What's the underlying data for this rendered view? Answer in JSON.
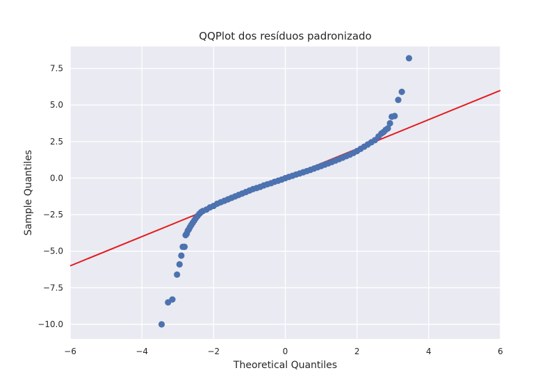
{
  "chart_data": {
    "type": "scatter",
    "title": "QQPlot dos resíduos padronizado",
    "xlabel": "Theoretical Quantiles",
    "ylabel": "Sample Quantiles",
    "xlim": [
      -6,
      6
    ],
    "ylim": [
      -11,
      9
    ],
    "xticks": [
      -6,
      -4,
      -2,
      0,
      2,
      4,
      6
    ],
    "xtick_labels": [
      "−6",
      "−4",
      "−2",
      "0",
      "2",
      "4",
      "6"
    ],
    "yticks": [
      -10,
      -7.5,
      -5,
      -2.5,
      0,
      2.5,
      5,
      7.5
    ],
    "ytick_labels": [
      "−10.0",
      "−7.5",
      "−5.0",
      "−2.5",
      "0.0",
      "2.5",
      "5.0",
      "7.5"
    ],
    "grid": true,
    "background": "#eaeaf2",
    "point_color": "#4c72b0",
    "reference_line": {
      "color": "#e41a1c",
      "points": [
        [
          -6,
          -6
        ],
        [
          6,
          6
        ]
      ]
    },
    "points": [
      [
        -3.45,
        -10.0
      ],
      [
        -3.27,
        -8.5
      ],
      [
        -3.15,
        -8.3
      ],
      [
        -3.02,
        -6.6
      ],
      [
        -2.95,
        -5.9
      ],
      [
        -2.9,
        -5.3
      ],
      [
        -2.86,
        -4.7
      ],
      [
        -2.81,
        -4.7
      ],
      [
        -2.78,
        -3.9
      ],
      [
        -2.75,
        -3.8
      ],
      [
        -2.72,
        -3.6
      ],
      [
        -2.69,
        -3.5
      ],
      [
        -2.66,
        -3.35
      ],
      [
        -2.62,
        -3.2
      ],
      [
        -2.58,
        -3.05
      ],
      [
        -2.54,
        -2.9
      ],
      [
        -2.5,
        -2.75
      ],
      [
        -2.45,
        -2.6
      ],
      [
        -2.4,
        -2.45
      ],
      [
        -2.35,
        -2.33
      ],
      [
        -2.3,
        -2.25
      ],
      [
        -2.2,
        -2.15
      ],
      [
        -2.1,
        -2.0
      ],
      [
        -2.0,
        -1.9
      ],
      [
        -1.9,
        -1.75
      ],
      [
        -1.8,
        -1.65
      ],
      [
        -1.7,
        -1.55
      ],
      [
        -1.6,
        -1.45
      ],
      [
        -1.5,
        -1.35
      ],
      [
        -1.4,
        -1.25
      ],
      [
        -1.3,
        -1.15
      ],
      [
        -1.2,
        -1.05
      ],
      [
        -1.1,
        -0.95
      ],
      [
        -1.0,
        -0.85
      ],
      [
        -0.9,
        -0.75
      ],
      [
        -0.8,
        -0.68
      ],
      [
        -0.7,
        -0.6
      ],
      [
        -0.6,
        -0.5
      ],
      [
        -0.5,
        -0.42
      ],
      [
        -0.4,
        -0.35
      ],
      [
        -0.3,
        -0.25
      ],
      [
        -0.2,
        -0.18
      ],
      [
        -0.1,
        -0.1
      ],
      [
        0.0,
        0.0
      ],
      [
        0.1,
        0.08
      ],
      [
        0.2,
        0.16
      ],
      [
        0.3,
        0.24
      ],
      [
        0.4,
        0.32
      ],
      [
        0.5,
        0.4
      ],
      [
        0.6,
        0.48
      ],
      [
        0.7,
        0.56
      ],
      [
        0.8,
        0.65
      ],
      [
        0.9,
        0.74
      ],
      [
        1.0,
        0.83
      ],
      [
        1.1,
        0.92
      ],
      [
        1.2,
        1.01
      ],
      [
        1.3,
        1.1
      ],
      [
        1.4,
        1.2
      ],
      [
        1.5,
        1.3
      ],
      [
        1.6,
        1.4
      ],
      [
        1.7,
        1.5
      ],
      [
        1.8,
        1.6
      ],
      [
        1.9,
        1.72
      ],
      [
        2.0,
        1.85
      ],
      [
        2.1,
        2.0
      ],
      [
        2.2,
        2.15
      ],
      [
        2.3,
        2.3
      ],
      [
        2.4,
        2.45
      ],
      [
        2.5,
        2.6
      ],
      [
        2.6,
        2.85
      ],
      [
        2.68,
        3.05
      ],
      [
        2.74,
        3.15
      ],
      [
        2.8,
        3.3
      ],
      [
        2.86,
        3.4
      ],
      [
        2.92,
        3.75
      ],
      [
        2.97,
        4.2
      ],
      [
        3.05,
        4.25
      ],
      [
        3.15,
        5.35
      ],
      [
        3.25,
        5.9
      ],
      [
        3.45,
        8.2
      ]
    ]
  }
}
